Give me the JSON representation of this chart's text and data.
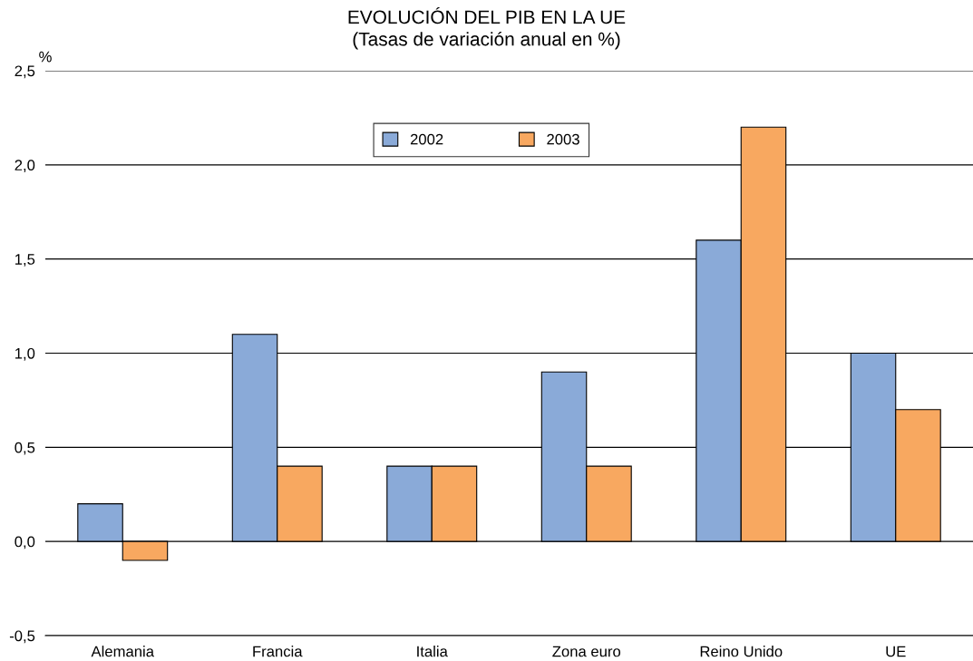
{
  "chart_data": {
    "type": "bar",
    "title": "EVOLUCIÓN DEL PIB EN LA UE\n(Tasas de variación anual en %)",
    "ylabel": "%",
    "categories": [
      "Alemania",
      "Francia",
      "Italia",
      "Zona euro",
      "Reino Unido",
      "UE"
    ],
    "series": [
      {
        "name": "2002",
        "color": "#8aaad8",
        "values": [
          0.2,
          1.1,
          0.4,
          0.9,
          1.6,
          1.0
        ]
      },
      {
        "name": "2003",
        "color": "#f8a860",
        "values": [
          -0.1,
          0.4,
          0.4,
          0.4,
          2.2,
          0.7
        ]
      }
    ],
    "ylim": [
      -0.5,
      2.5
    ],
    "yticks": [
      {
        "value": -0.5,
        "label": "-0,5"
      },
      {
        "value": 0.0,
        "label": "0,0"
      },
      {
        "value": 0.5,
        "label": "0,5"
      },
      {
        "value": 1.0,
        "label": "1,0"
      },
      {
        "value": 1.5,
        "label": "1,5"
      },
      {
        "value": 2.0,
        "label": "2,0"
      },
      {
        "value": 2.5,
        "label": "2,5"
      }
    ],
    "grid": "y",
    "legend": "top"
  }
}
